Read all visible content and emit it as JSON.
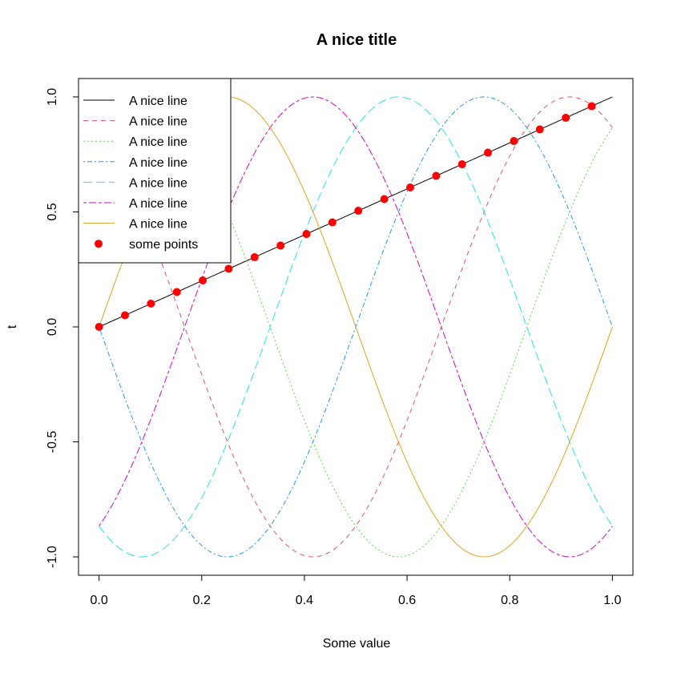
{
  "chart_data": {
    "type": "line",
    "title": "A nice title",
    "xlabel": "Some value",
    "ylabel": "t",
    "xlim": [
      -0.04,
      1.04
    ],
    "ylim": [
      -1.08,
      1.08
    ],
    "x_ticks": [
      0.0,
      0.2,
      0.4,
      0.6,
      0.8,
      1.0
    ],
    "x_tick_labels": [
      "0.0",
      "0.2",
      "0.4",
      "0.6",
      "0.8",
      "1.0"
    ],
    "y_ticks": [
      -1.0,
      -0.5,
      0.0,
      0.5,
      1.0
    ],
    "y_tick_labels": [
      "-1.0",
      "-0.5",
      "0.0",
      "0.5",
      "1.0"
    ],
    "grid": false,
    "legend_position": "top-left",
    "series": [
      {
        "name": "A nice line",
        "formula": "t = x",
        "color": "#000000",
        "dash": "solid"
      },
      {
        "name": "A nice line",
        "formula": "t = sin(2*pi*x + 2*pi/3)",
        "color": "#DF536B",
        "dash": "dashed"
      },
      {
        "name": "A nice line",
        "formula": "t = sin(2*pi*x + pi/3)",
        "color": "#61D04F",
        "dash": "dotted"
      },
      {
        "name": "A nice line",
        "formula": "t = sin(2*pi*x + pi)",
        "color": "#2297E6",
        "dash": "dotdash"
      },
      {
        "name": "A nice line",
        "formula": "t = sin(2*pi*x - 2*pi/3)",
        "color": "#28E2E5",
        "dash": "longdash"
      },
      {
        "name": "A nice line",
        "formula": "t = sin(2*pi*x - pi/3)",
        "color": "#CD0BBC",
        "dash": "twodash"
      },
      {
        "name": "A nice line",
        "formula": "t = sin(2*pi*x)",
        "color": "#DAA520",
        "dash": "solid"
      }
    ],
    "points": {
      "name": "some points",
      "color": "#FF0000",
      "x": [
        0.0,
        0.0505,
        0.101,
        0.1515,
        0.202,
        0.2525,
        0.303,
        0.3535,
        0.404,
        0.4545,
        0.505,
        0.5556,
        0.6061,
        0.6566,
        0.7071,
        0.7576,
        0.8081,
        0.8586,
        0.9091,
        0.9596
      ],
      "y": [
        0.0,
        0.0505,
        0.101,
        0.1515,
        0.202,
        0.2525,
        0.303,
        0.3535,
        0.404,
        0.4545,
        0.505,
        0.5556,
        0.6061,
        0.6566,
        0.7071,
        0.7576,
        0.8081,
        0.8586,
        0.9091,
        0.9596
      ]
    }
  }
}
